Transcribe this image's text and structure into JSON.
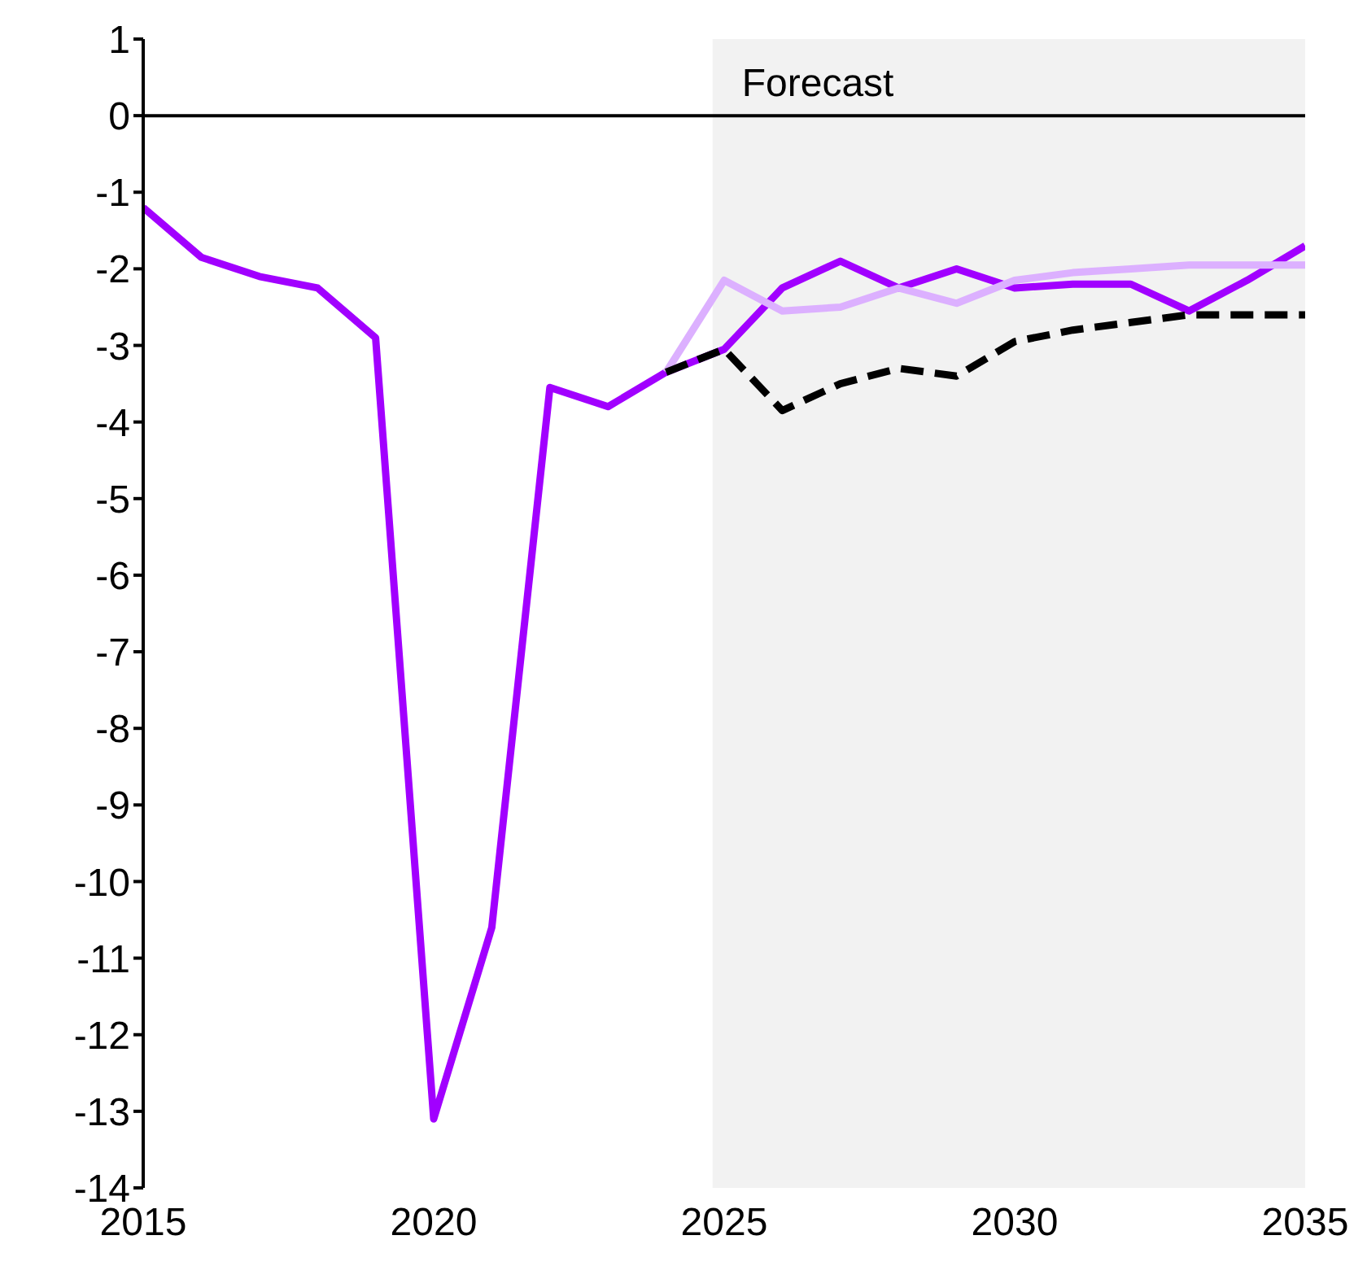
{
  "chart_data": {
    "type": "line",
    "x": [
      2015,
      2016,
      2017,
      2018,
      2019,
      2020,
      2021,
      2022,
      2023,
      2024,
      2025,
      2026,
      2027,
      2028,
      2029,
      2030,
      2031,
      2032,
      2033,
      2034,
      2035
    ],
    "series": [
      {
        "color": "#a100ff",
        "values": [
          -1.2,
          -1.85,
          -2.1,
          -2.25,
          -2.9,
          -13.1,
          -10.6,
          -3.55,
          -3.8,
          -3.35,
          -3.05,
          -2.25,
          -1.9,
          -2.25,
          -2.0,
          -2.25,
          -2.2,
          -2.2,
          -2.55,
          -2.15,
          -1.7
        ]
      },
      {
        "color": "#dcb0ff",
        "values": [
          null,
          null,
          null,
          null,
          null,
          null,
          null,
          null,
          null,
          -3.35,
          -2.15,
          -2.55,
          -2.5,
          -2.25,
          -2.45,
          -2.15,
          -2.05,
          -2.0,
          -1.95,
          -1.95,
          -1.95
        ]
      },
      {
        "color": "#000000",
        "line_style": "dashed",
        "values": [
          null,
          null,
          null,
          null,
          null,
          null,
          null,
          null,
          null,
          -3.35,
          -3.05,
          -3.85,
          -3.5,
          -3.3,
          -3.4,
          -2.95,
          -2.8,
          -2.7,
          -2.6,
          -2.6,
          -2.6
        ]
      }
    ],
    "xlim": [
      2015,
      2035
    ],
    "xticks": [
      2015,
      2020,
      2025,
      2030,
      2035
    ],
    "ylim": [
      -14,
      1
    ],
    "yticks": [
      -14,
      -13,
      -12,
      -11,
      -10,
      -9,
      -8,
      -7,
      -6,
      -5,
      -4,
      -3,
      -2,
      -1,
      0,
      1
    ],
    "bands": [
      {
        "axis": "x",
        "from": 2024.8,
        "to": 2035,
        "label": "Forecast",
        "color": "#f2f2f2"
      }
    ],
    "ref_lines": [
      {
        "axis": "y",
        "value": 0,
        "color": "#000000"
      }
    ],
    "grid": false,
    "legend": false,
    "marker": "none",
    "line_style": "solid"
  }
}
